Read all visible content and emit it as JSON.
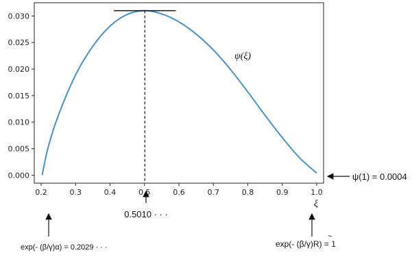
{
  "chart_data": {
    "type": "line",
    "title": "",
    "xlabel": "ξ",
    "ylabel": "",
    "xlim": [
      0.18,
      1.02
    ],
    "ylim": [
      -0.0015,
      0.0325
    ],
    "xticks": [
      "0.2",
      "0.3",
      "0.4",
      "0.5",
      "0.6",
      "0.7",
      "0.8",
      "0.9",
      "1.0"
    ],
    "yticks": [
      "0.000",
      "0.005",
      "0.010",
      "0.015",
      "0.020",
      "0.025",
      "0.030"
    ],
    "grid": false,
    "series": [
      {
        "name": "ψ(ξ)",
        "color": "#4a90c4",
        "x": [
          0.2029,
          0.22,
          0.25,
          0.3,
          0.35,
          0.4,
          0.45,
          0.501,
          0.55,
          0.6,
          0.65,
          0.7,
          0.75,
          0.8,
          0.85,
          0.9,
          0.95,
          1.0
        ],
        "y": [
          0.0,
          0.0052,
          0.0113,
          0.0189,
          0.0243,
          0.0281,
          0.0303,
          0.031,
          0.0304,
          0.0289,
          0.0266,
          0.0236,
          0.0199,
          0.0157,
          0.0113,
          0.0071,
          0.0033,
          0.0004
        ]
      }
    ],
    "peak": {
      "x": 0.501,
      "y": 0.031
    }
  },
  "annotations": {
    "curve_label": "ψ(ξ)",
    "xi_label": "ξ",
    "right_value": "ψ(1) = 0.0004",
    "peak_label": "0.5010 · · ·",
    "left_bottom": "exp(- (β/γ)α) = 0.2029 · · ·",
    "right_bottom_prefix": "exp(- (β/γ)",
    "right_bottom_R": "R",
    "right_bottom_tilde": "~",
    "right_bottom_suffix": ") = 1"
  }
}
